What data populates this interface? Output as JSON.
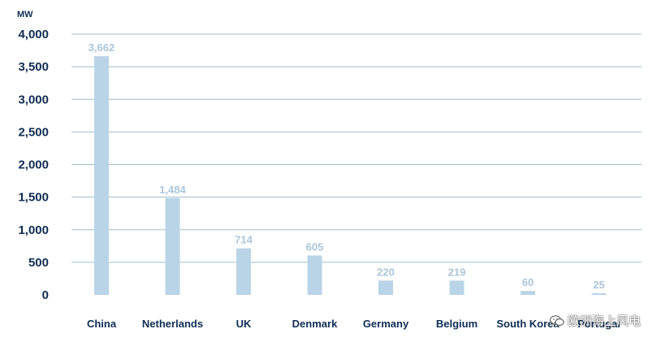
{
  "chart_data": {
    "type": "bar",
    "unit_label": "MW",
    "categories": [
      "China",
      "Netherlands",
      "UK",
      "Denmark",
      "Germany",
      "Belgium",
      "South Korea",
      "Portugal"
    ],
    "values": [
      3662,
      1484,
      714,
      605,
      220,
      219,
      60,
      25
    ],
    "data_labels": [
      "3,662",
      "1,484",
      "714",
      "605",
      "220",
      "219",
      "60",
      "25"
    ],
    "ylim": [
      0,
      4000
    ],
    "yticks": [
      0,
      500,
      1000,
      1500,
      2000,
      2500,
      3000,
      3500,
      4000
    ],
    "ytick_labels": [
      "0",
      "500",
      "1,000",
      "1,500",
      "2,000",
      "2,500",
      "3,000",
      "3,500",
      "4,000"
    ],
    "grid": true,
    "legend": "none"
  },
  "colors": {
    "bar": "#b9d4e6",
    "data_label": "#a9c5da",
    "grid": "#9ebfc7",
    "axis_text": "#0f2d53"
  },
  "watermark": {
    "text": "欧洲海上风电",
    "icon": "wechat-icon"
  }
}
